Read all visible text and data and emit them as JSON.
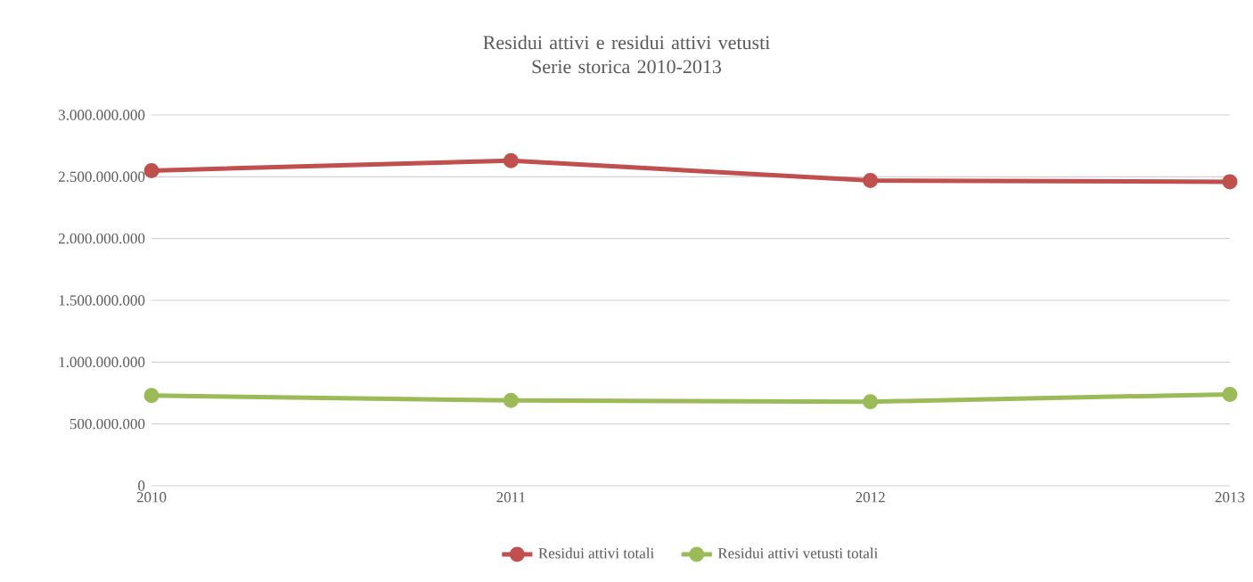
{
  "chart_data": {
    "type": "line",
    "title": "Residui attivi e residui attivi vetusti\nSerie storica 2010-2013",
    "categories": [
      "2010",
      "2011",
      "2012",
      "2013"
    ],
    "series": [
      {
        "name": "Residui attivi totali",
        "color": "#c0504d",
        "values": [
          2550000000,
          2630000000,
          2470000000,
          2460000000
        ]
      },
      {
        "name": "Residui attivi vetusti totali",
        "color": "#9bbb59",
        "values": [
          730000000,
          690000000,
          680000000,
          740000000
        ]
      }
    ],
    "ylim": [
      0,
      3000000000
    ],
    "yticks": [
      0,
      {
        "value": 500000000,
        "label": "500.000.000"
      },
      {
        "value": 1000000000,
        "label": "1.000.000.000"
      },
      {
        "value": 1500000000,
        "label": "1.500.000.000"
      },
      {
        "value": 2000000000,
        "label": "2.000.000.000"
      },
      {
        "value": 2500000000,
        "label": "2.500.000.000"
      },
      {
        "value": 3000000000,
        "label": "3.000.000.000"
      }
    ],
    "grid": "y",
    "legend": "bottom",
    "marker": "circle",
    "line_style": "solid"
  }
}
